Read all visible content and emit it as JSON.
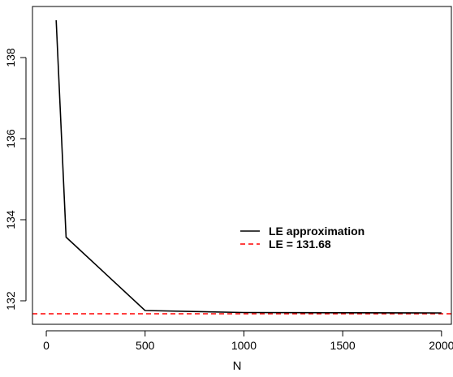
{
  "chart_data": {
    "type": "line",
    "title": "",
    "xlabel": "N",
    "ylabel": "",
    "xlim": [
      -70,
      2050
    ],
    "ylim": [
      131.42,
      139.26
    ],
    "x_ticks": [
      0,
      500,
      1000,
      1500,
      2000
    ],
    "x_tick_labels": [
      "0",
      "500",
      "1000",
      "1500",
      "2000"
    ],
    "y_ticks": [
      132,
      134,
      136,
      138
    ],
    "y_tick_labels": [
      "132",
      "134",
      "136",
      "138"
    ],
    "grid": false,
    "legend_position": "right-center",
    "series": [
      {
        "name": "LE approximation",
        "color": "#000000",
        "dash": "solid",
        "x": [
          50,
          100,
          500,
          1000,
          2000
        ],
        "y": [
          138.92,
          133.57,
          131.76,
          131.71,
          131.7
        ]
      }
    ],
    "hlines": [
      {
        "name": "LE = 131.68",
        "y": 131.68,
        "color": "#ff0000",
        "dash": "dashed"
      }
    ]
  }
}
